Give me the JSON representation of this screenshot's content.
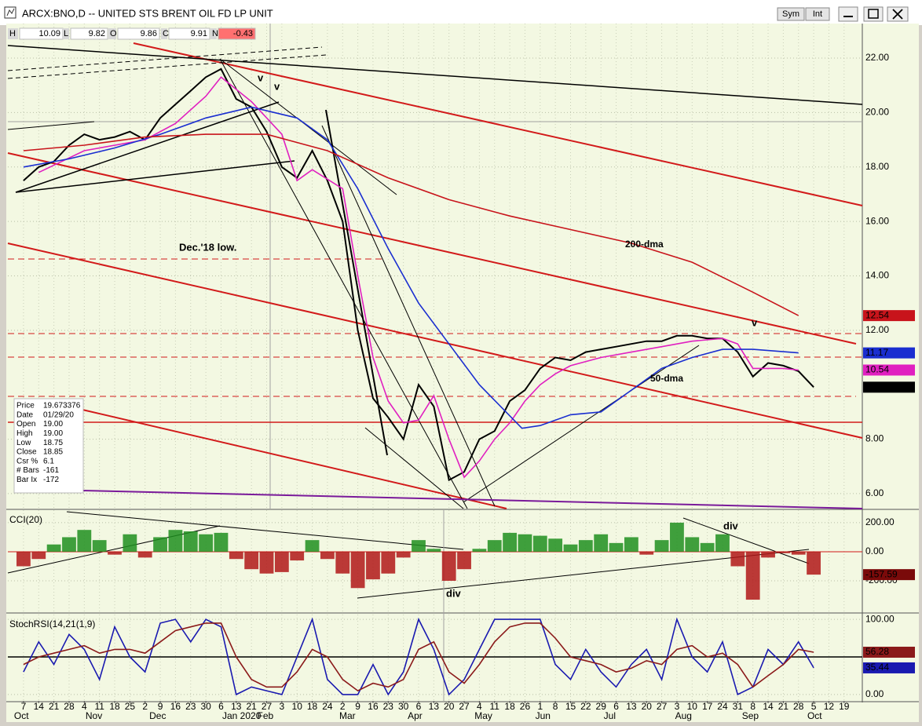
{
  "window": {
    "title": "ARCX:BNO,D -- UNITED STS BRENT OIL FD LP UNIT",
    "buttons": [
      "Sym",
      "Int"
    ]
  },
  "quote": [
    {
      "label": "H",
      "value": 10.09
    },
    {
      "label": "L",
      "value": 9.82
    },
    {
      "label": "O",
      "value": 9.86
    },
    {
      "label": "C",
      "value": 9.91
    },
    {
      "label": "N",
      "value": -0.43
    }
  ],
  "data_window": [
    {
      "label": "Price",
      "value": "19.673376"
    },
    {
      "label": "Date",
      "value": "01/29/20"
    },
    {
      "label": "Open",
      "value": "19.00"
    },
    {
      "label": "High",
      "value": "19.00"
    },
    {
      "label": "Low",
      "value": "18.75"
    },
    {
      "label": "Close",
      "value": "18.85"
    },
    {
      "label": "Csr %",
      "value": "6.1"
    },
    {
      "label": "# Bars",
      "value": "-161"
    },
    {
      "label": "Bar Ix",
      "value": "-172"
    }
  ],
  "chart_data": [
    {
      "type": "line",
      "ylim": [
        5.45,
        23.27
      ],
      "yticks": [
        {
          "value": 22,
          "label": "22.00"
        },
        {
          "value": 20,
          "label": "20.00"
        },
        {
          "value": 18,
          "label": "18.00"
        },
        {
          "value": 16,
          "label": "16.00"
        },
        {
          "value": 14,
          "label": "14.00"
        },
        {
          "value": 12,
          "label": "12.00"
        },
        {
          "value": 8,
          "label": "8.00"
        },
        {
          "value": 6,
          "label": "6.00"
        }
      ],
      "grid": true,
      "last_value_tags": true,
      "series": [
        {
          "color": "#000000",
          "x": [
            0,
            1,
            2,
            3,
            4,
            5,
            6,
            7,
            8,
            9,
            10,
            11,
            12,
            13,
            14,
            15,
            16,
            17,
            18,
            19,
            20,
            21,
            22,
            23,
            24,
            25,
            26,
            27,
            28,
            29,
            30,
            31,
            32,
            33,
            34,
            35,
            36,
            37,
            38,
            39,
            40,
            41,
            42,
            43,
            44,
            45,
            46,
            47,
            48,
            49,
            50,
            51,
            52
          ],
          "values": [
            17.5,
            18.0,
            18.2,
            18.8,
            19.2,
            19.0,
            19.1,
            19.3,
            19.0,
            19.8,
            20.3,
            20.8,
            21.3,
            21.6,
            20.5,
            20.2,
            19.3,
            18.0,
            17.6,
            18.6,
            17.5,
            16.0,
            12.0,
            9.5,
            8.8,
            8.0,
            10.0,
            9.2,
            6.5,
            6.8,
            8.0,
            8.3,
            9.4,
            9.8,
            10.6,
            11.0,
            10.9,
            11.2,
            11.3,
            11.4,
            11.5,
            11.6,
            11.6,
            11.8,
            11.8,
            11.7,
            11.7,
            11.2,
            10.3,
            10.8,
            10.7,
            10.5,
            9.91
          ]
        },
        {
          "color": "#e020c0",
          "x": [
            1,
            4,
            8,
            10,
            12,
            13,
            15,
            17,
            18,
            19,
            21,
            22,
            23,
            24,
            25,
            26,
            27,
            28,
            29,
            30,
            31,
            32,
            33,
            34,
            35,
            36,
            38,
            40,
            42,
            44,
            46,
            47,
            48,
            50,
            51
          ],
          "values": [
            17.8,
            18.6,
            19.0,
            19.6,
            20.6,
            21.3,
            20.4,
            19.2,
            17.5,
            17.9,
            17.2,
            14.0,
            11.0,
            9.4,
            8.6,
            8.7,
            9.6,
            8.0,
            6.6,
            7.2,
            8.0,
            8.6,
            9.4,
            10.0,
            10.4,
            10.7,
            11.0,
            11.2,
            11.4,
            11.6,
            11.7,
            11.5,
            10.6,
            10.6,
            10.54
          ]
        },
        {
          "name": "50-dma",
          "color": "#1a2ed0",
          "x": [
            0,
            3,
            6,
            9,
            12,
            15,
            18,
            20,
            22,
            24,
            26,
            28,
            30,
            32.8,
            34,
            36,
            38,
            40,
            42,
            44,
            46,
            48,
            51
          ],
          "values": [
            18.0,
            18.3,
            18.7,
            19.2,
            19.8,
            20.2,
            19.8,
            19.0,
            17.2,
            15.0,
            13.0,
            11.5,
            10.0,
            8.4,
            8.5,
            8.9,
            9.0,
            9.8,
            10.6,
            11.0,
            11.3,
            11.3,
            11.17
          ]
        },
        {
          "name": "200-dma",
          "color": "#c8141b",
          "x": [
            0,
            4,
            8,
            12,
            16,
            20,
            24,
            28,
            32,
            36,
            40,
            44,
            48,
            51
          ],
          "values": [
            18.6,
            18.8,
            19.1,
            19.2,
            19.2,
            18.6,
            17.6,
            16.8,
            16.2,
            15.7,
            15.2,
            14.5,
            13.4,
            12.54
          ]
        }
      ],
      "annotations": [
        {
          "text": "Dec.'18 low.",
          "color": "#d01818"
        },
        {
          "text": "v",
          "color": "#1a1ad0"
        },
        {
          "text": "v",
          "color": "#d01818"
        },
        {
          "text": "v",
          "color": "#1a1ad0"
        }
      ]
    },
    {
      "type": "bar",
      "title": "CCI(20)",
      "ylim": [
        -416,
        286
      ],
      "yticks": [
        {
          "value": 200,
          "label": "200.00"
        },
        {
          "value": 0,
          "label": "0.00"
        },
        {
          "value": -200,
          "label": "-200.00"
        }
      ],
      "grid": true,
      "reference_line": 0,
      "color_positive": "#1f8f1f",
      "color_negative": "#b01818",
      "last_value_tags": true,
      "tag_color": "#7a0a0a",
      "x": [
        0,
        1,
        2,
        3,
        4,
        5,
        6,
        7,
        8,
        9,
        10,
        11,
        12,
        13,
        14,
        15,
        16,
        17,
        18,
        19,
        20,
        21,
        22,
        23,
        24,
        25,
        26,
        27,
        28,
        29,
        30,
        31,
        32,
        33,
        34,
        35,
        36,
        37,
        38,
        39,
        40,
        41,
        42,
        43,
        44,
        45,
        46,
        47,
        48,
        49,
        50,
        51,
        52
      ],
      "values": [
        -100,
        -50,
        50,
        100,
        150,
        80,
        -20,
        120,
        -40,
        100,
        150,
        140,
        120,
        130,
        -50,
        -120,
        -150,
        -140,
        -60,
        80,
        -50,
        -150,
        -250,
        -190,
        -150,
        -40,
        80,
        20,
        -200,
        -120,
        20,
        80,
        130,
        120,
        110,
        90,
        50,
        80,
        120,
        60,
        100,
        -20,
        80,
        200,
        100,
        60,
        120,
        -100,
        -330,
        -40,
        -10,
        -20,
        -157.59
      ],
      "annotations": [
        {
          "text": "div",
          "color": "#1f8f1f"
        },
        {
          "text": "div",
          "color": "#c01818"
        }
      ]
    },
    {
      "type": "line",
      "title": "StochRSI(14,21(1,9)",
      "ylim": [
        -8.5,
        106.4
      ],
      "yticks": [
        {
          "value": 100,
          "label": "100.00"
        },
        {
          "value": 0,
          "label": "0.00"
        }
      ],
      "grid": true,
      "reference_line": 50,
      "last_value_tags": true,
      "series": [
        {
          "color": "#1a1ab0",
          "x": [
            0,
            1,
            2,
            3,
            4,
            5,
            6,
            7,
            8,
            9,
            10,
            11,
            12,
            13,
            14,
            15,
            16,
            17,
            18,
            19,
            20,
            21,
            22,
            23,
            24,
            25,
            26,
            27,
            28,
            29,
            30,
            31,
            32,
            33,
            34,
            35,
            36,
            37,
            38,
            39,
            40,
            41,
            42,
            43,
            44,
            45,
            46,
            47,
            48,
            49,
            50,
            51,
            52
          ],
          "values": [
            30,
            70,
            40,
            80,
            60,
            20,
            90,
            50,
            30,
            95,
            100,
            70,
            100,
            90,
            0,
            10,
            5,
            0,
            50,
            100,
            20,
            0,
            0,
            40,
            0,
            30,
            100,
            60,
            0,
            20,
            60,
            100,
            100,
            100,
            100,
            40,
            20,
            60,
            30,
            10,
            40,
            60,
            20,
            100,
            50,
            30,
            70,
            0,
            10,
            60,
            40,
            70,
            35.44
          ]
        },
        {
          "color": "#8b1a1a",
          "x": [
            0,
            1,
            2,
            3,
            4,
            5,
            6,
            7,
            8,
            9,
            10,
            11,
            12,
            13,
            14,
            15,
            16,
            17,
            18,
            19,
            20,
            21,
            22,
            23,
            24,
            25,
            26,
            27,
            28,
            29,
            30,
            31,
            32,
            33,
            34,
            35,
            36,
            37,
            38,
            39,
            40,
            41,
            42,
            43,
            44,
            45,
            46,
            47,
            48,
            49,
            50,
            51,
            52
          ],
          "values": [
            40,
            50,
            55,
            60,
            65,
            55,
            60,
            60,
            55,
            70,
            85,
            90,
            95,
            95,
            50,
            20,
            10,
            10,
            30,
            60,
            50,
            20,
            5,
            15,
            10,
            20,
            60,
            70,
            30,
            15,
            40,
            70,
            90,
            95,
            95,
            75,
            50,
            45,
            40,
            30,
            35,
            45,
            40,
            60,
            65,
            50,
            55,
            40,
            10,
            25,
            40,
            60,
            56.28
          ]
        }
      ],
      "xlim": [
        -1.03,
        55.2
      ],
      "xticks": [
        {
          "value": 0,
          "label": "7"
        },
        {
          "value": 1,
          "label": "14"
        },
        {
          "value": 2,
          "label": "21"
        },
        {
          "value": 3,
          "label": "28"
        },
        {
          "value": 4,
          "label": "4"
        },
        {
          "value": 5,
          "label": "11"
        },
        {
          "value": 6,
          "label": "18"
        },
        {
          "value": 7,
          "label": "25"
        },
        {
          "value": 8,
          "label": "2"
        },
        {
          "value": 9,
          "label": "9"
        },
        {
          "value": 10,
          "label": "16"
        },
        {
          "value": 11,
          "label": "23"
        },
        {
          "value": 12,
          "label": "30"
        },
        {
          "value": 13,
          "label": "6"
        },
        {
          "value": 14,
          "label": "13"
        },
        {
          "value": 15,
          "label": "21"
        },
        {
          "value": 16,
          "label": "27"
        },
        {
          "value": 17,
          "label": "3"
        },
        {
          "value": 18,
          "label": "10"
        },
        {
          "value": 19,
          "label": "18"
        },
        {
          "value": 20,
          "label": "24"
        },
        {
          "value": 21,
          "label": "2"
        },
        {
          "value": 22,
          "label": "9"
        },
        {
          "value": 23,
          "label": "16"
        },
        {
          "value": 24,
          "label": "23"
        },
        {
          "value": 25,
          "label": "30"
        },
        {
          "value": 26,
          "label": "6"
        },
        {
          "value": 27,
          "label": "13"
        },
        {
          "value": 28,
          "label": "20"
        },
        {
          "value": 29,
          "label": "27"
        },
        {
          "value": 30,
          "label": "4"
        },
        {
          "value": 31,
          "label": "11"
        },
        {
          "value": 32,
          "label": "18"
        },
        {
          "value": 33,
          "label": "26"
        },
        {
          "value": 34,
          "label": "1"
        },
        {
          "value": 35,
          "label": "8"
        },
        {
          "value": 36,
          "label": "15"
        },
        {
          "value": 37,
          "label": "22"
        },
        {
          "value": 38,
          "label": "29"
        },
        {
          "value": 39,
          "label": "6"
        },
        {
          "value": 40,
          "label": "13"
        },
        {
          "value": 41,
          "label": "20"
        },
        {
          "value": 42,
          "label": "27"
        },
        {
          "value": 43,
          "label": "3"
        },
        {
          "value": 44,
          "label": "10"
        },
        {
          "value": 45,
          "label": "17"
        },
        {
          "value": 46,
          "label": "24"
        },
        {
          "value": 47,
          "label": "31"
        },
        {
          "value": 48,
          "label": "8"
        },
        {
          "value": 49,
          "label": "14"
        },
        {
          "value": 50,
          "label": "21"
        },
        {
          "value": 51,
          "label": "28"
        },
        {
          "value": 52,
          "label": "5"
        },
        {
          "value": 53,
          "label": "12"
        },
        {
          "value": 54,
          "label": "19"
        }
      ],
      "month_labels": [
        {
          "value": 0,
          "label": "Oct"
        },
        {
          "value": 4.7,
          "label": "Nov"
        },
        {
          "value": 8.9,
          "label": "Dec"
        },
        {
          "value": 13.7,
          "label": "Jan 2020"
        },
        {
          "value": 16,
          "label": "Feb"
        },
        {
          "value": 21.4,
          "label": "Mar"
        },
        {
          "value": 25.9,
          "label": "Apr"
        },
        {
          "value": 30.3,
          "label": "May"
        },
        {
          "value": 34.3,
          "label": "Jun"
        },
        {
          "value": 38.8,
          "label": "Jul"
        },
        {
          "value": 43.5,
          "label": "Aug"
        },
        {
          "value": 47.9,
          "label": "Sep"
        },
        {
          "value": 52.2,
          "label": "Oct"
        }
      ]
    }
  ]
}
